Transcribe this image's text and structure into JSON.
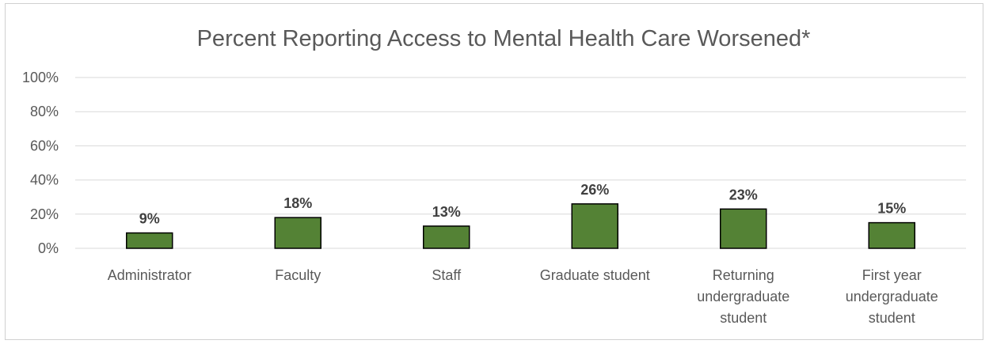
{
  "chart_data": {
    "type": "bar",
    "title": "Percent Reporting Access to Mental Health Care Worsened*",
    "xlabel": "",
    "ylabel": "",
    "categories": [
      [
        "Administrator"
      ],
      [
        "Faculty"
      ],
      [
        "Staff"
      ],
      [
        "Graduate student"
      ],
      [
        "Returning",
        "undergraduate",
        "student"
      ],
      [
        "First year",
        "undergraduate",
        "student"
      ]
    ],
    "values": [
      9,
      18,
      13,
      26,
      23,
      15
    ],
    "data_labels": [
      "9%",
      "18%",
      "13%",
      "26%",
      "23%",
      "15%"
    ],
    "ylim": [
      0,
      100
    ],
    "yticks": [
      "0%",
      "20%",
      "40%",
      "60%",
      "80%",
      "100%"
    ],
    "grid": true,
    "legend": "none",
    "bar_color": "#548235",
    "bar_outline": "#000000"
  }
}
